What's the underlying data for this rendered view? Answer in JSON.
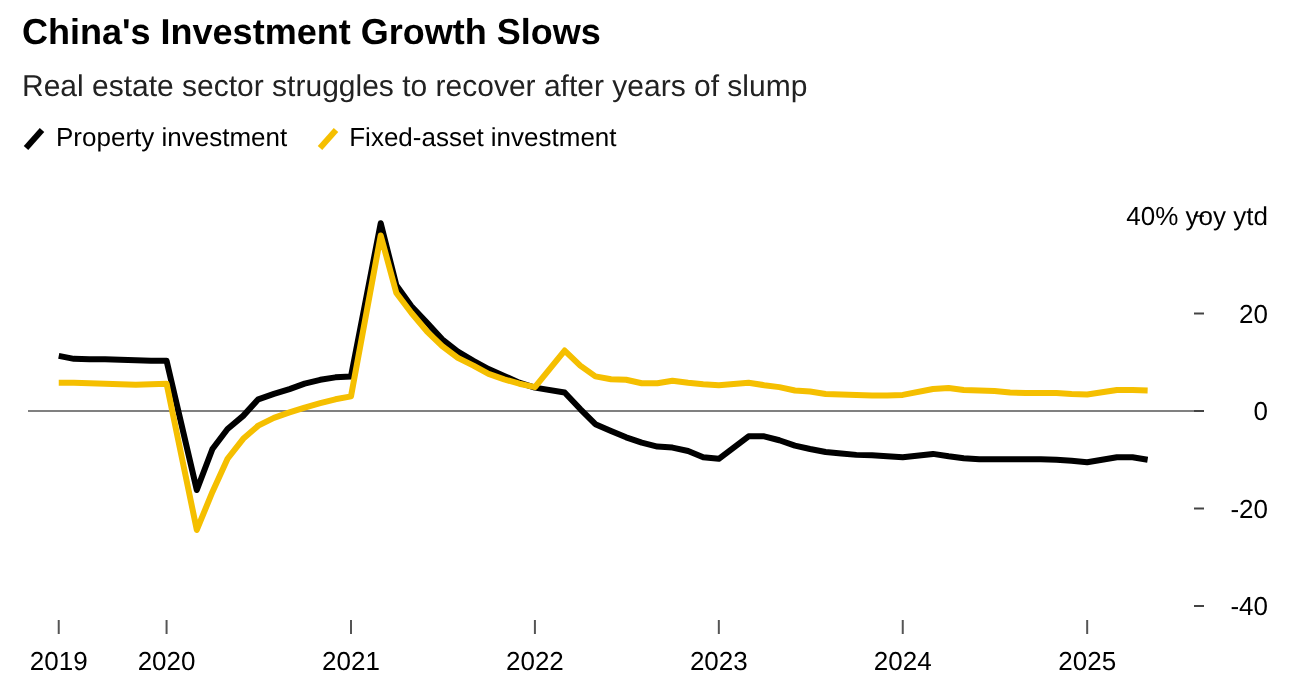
{
  "chart_data": {
    "type": "line",
    "title": "China's Investment Growth Slows",
    "subtitle": "Real estate sector struggles to recover after years of slump",
    "x": [
      "2019-06",
      "2019-07",
      "2019-08",
      "2019-09",
      "2019-10",
      "2019-11",
      "2019-12",
      "2020-01",
      "2020-03",
      "2020-04",
      "2020-05",
      "2020-06",
      "2020-07",
      "2020-08",
      "2020-09",
      "2020-10",
      "2020-11",
      "2020-12",
      "2021-01",
      "2021-03",
      "2021-04",
      "2021-05",
      "2021-06",
      "2021-07",
      "2021-08",
      "2021-09",
      "2021-10",
      "2021-11",
      "2021-12",
      "2022-01",
      "2022-03",
      "2022-04",
      "2022-05",
      "2022-06",
      "2022-07",
      "2022-08",
      "2022-09",
      "2022-10",
      "2022-11",
      "2022-12",
      "2023-01",
      "2023-03",
      "2023-04",
      "2023-05",
      "2023-06",
      "2023-07",
      "2023-08",
      "2023-09",
      "2023-10",
      "2023-11",
      "2023-12",
      "2024-01",
      "2024-03",
      "2024-04",
      "2024-05",
      "2024-06",
      "2024-07",
      "2024-08",
      "2024-09",
      "2024-10",
      "2024-11",
      "2024-12",
      "2025-01",
      "2025-03",
      "2025-04",
      "2025-05"
    ],
    "series": [
      {
        "name": "Property investment",
        "color": "#000000",
        "values": [
          11.3,
          10.7,
          10.6,
          10.6,
          10.5,
          10.4,
          10.3,
          10.3,
          -16.2,
          -7.8,
          -3.7,
          -1,
          2.4,
          3.5,
          4.5,
          5.6,
          6.4,
          6.9,
          7.1,
          38.5,
          25.8,
          21.5,
          18.1,
          14.7,
          12.2,
          10.3,
          8.6,
          7.2,
          5.8,
          4.8,
          3.8,
          0.4,
          -2.7,
          -4.1,
          -5.4,
          -6.5,
          -7.3,
          -7.5,
          -8.2,
          -9.5,
          -9.8,
          -5.2,
          -5.2,
          -6,
          -7.1,
          -7.8,
          -8.4,
          -8.7,
          -9,
          -9.1,
          -9.3,
          -9.5,
          -8.8,
          -9.3,
          -9.7,
          -9.9,
          -9.9,
          -9.9,
          -9.9,
          -9.9,
          -10,
          -10.2,
          -10.5,
          -9.5,
          -9.5,
          -10
        ]
      },
      {
        "name": "Fixed-asset investment",
        "color": "#f5bf00",
        "values": [
          5.8,
          5.8,
          5.7,
          5.6,
          5.5,
          5.4,
          5.5,
          5.6,
          -24.4,
          -16.6,
          -9.8,
          -5.7,
          -3,
          -1.4,
          -0.3,
          0.7,
          1.6,
          2.4,
          3,
          36,
          24.2,
          20.1,
          16.3,
          13.3,
          10.9,
          9.3,
          7.6,
          6.5,
          5.6,
          4.9,
          12.4,
          9.3,
          7.1,
          6.5,
          6.4,
          5.7,
          5.7,
          6.2,
          5.8,
          5.5,
          5.3,
          5.8,
          5.3,
          4.9,
          4.2,
          4,
          3.5,
          3.4,
          3.3,
          3.2,
          3.2,
          3.3,
          4.5,
          4.7,
          4.3,
          4.2,
          4.1,
          3.8,
          3.7,
          3.7,
          3.7,
          3.5,
          3.4,
          4.3,
          4.3,
          4.2
        ]
      }
    ],
    "xlim": [
      "2019-04",
      "2025-08"
    ],
    "xticks": [
      {
        "value": "2019-06",
        "label": "2019"
      },
      {
        "value": "2020-01",
        "label": "2020"
      },
      {
        "value": "2021-01",
        "label": "2021"
      },
      {
        "value": "2022-01",
        "label": "2022"
      },
      {
        "value": "2023-01",
        "label": "2023"
      },
      {
        "value": "2024-01",
        "label": "2024"
      },
      {
        "value": "2025-01",
        "label": "2025"
      }
    ],
    "ylim": [
      -40,
      40
    ],
    "yticks": [
      {
        "value": 40,
        "label": "40% yoy ytd"
      },
      20,
      0,
      -20,
      -40
    ],
    "ref_lines": [
      {
        "axis": "y",
        "value": 0,
        "color": "#808080"
      }
    ],
    "legend": "top left",
    "grid": false,
    "marker": "none",
    "line_style": "solid"
  }
}
